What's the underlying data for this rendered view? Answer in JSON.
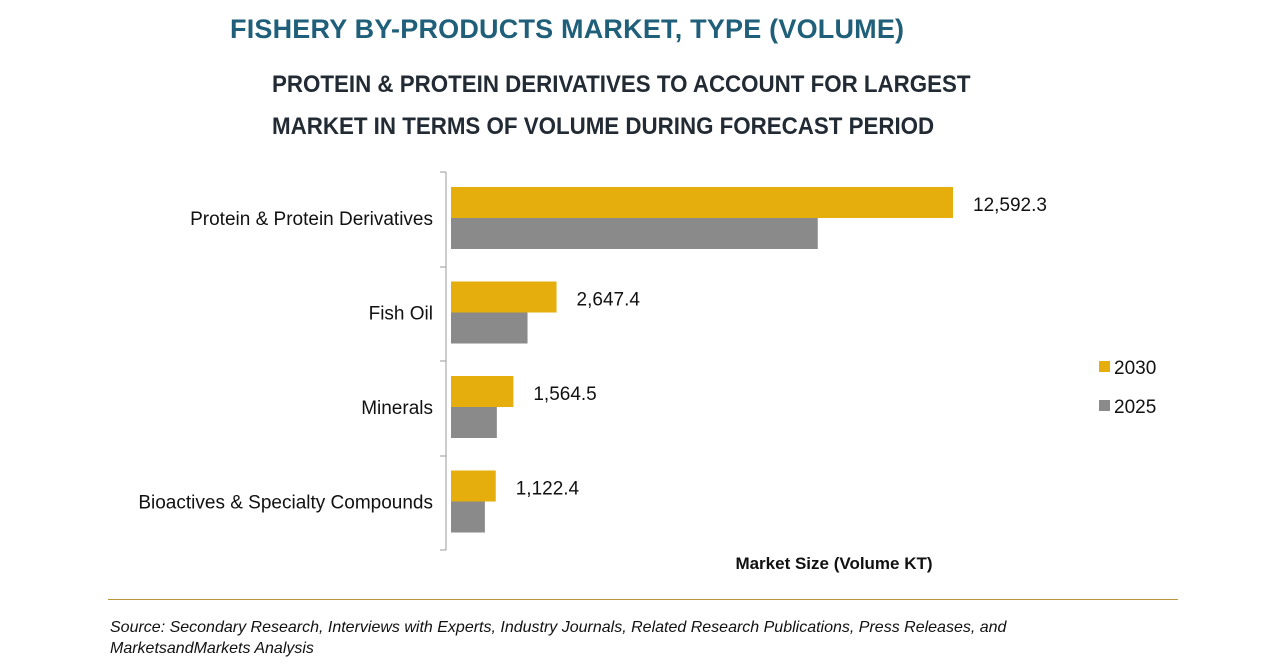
{
  "header": {
    "title": "FISHERY BY-PRODUCTS MARKET, TYPE (VOLUME)",
    "subtitle": "PROTEIN & PROTEIN DERIVATIVES TO ACCOUNT FOR LARGEST MARKET IN TERMS OF VOLUME DURING FORECAST PERIOD"
  },
  "chart_data": {
    "type": "bar",
    "orientation": "horizontal",
    "title": "FISHERY BY-PRODUCTS MARKET, TYPE (VOLUME)",
    "categories": [
      "Protein & Protein Derivatives",
      "Fish Oil",
      "Minerals",
      "Bioactives & Specialty Compounds"
    ],
    "series": [
      {
        "name": "2030",
        "values": [
          12592.3,
          2647.4,
          1564.5,
          1122.4
        ],
        "labels": [
          "12,592.3",
          "2,647.4",
          "1,564.5",
          "1,122.4"
        ],
        "color": "#e6ae0c"
      },
      {
        "name": "2025",
        "values": [
          9200,
          1920,
          1150,
          850
        ],
        "color": "#8a8a8a"
      }
    ],
    "xlabel": "Market Size (Volume KT)",
    "ylabel": "",
    "xlim": [
      0,
      14000
    ],
    "grid": false,
    "legend": "right"
  },
  "footer": {
    "source": "Source: Secondary Research, Interviews with Experts, Industry Journals, Related Research Publications, Press Releases, and MarketsandMarkets Analysis"
  }
}
